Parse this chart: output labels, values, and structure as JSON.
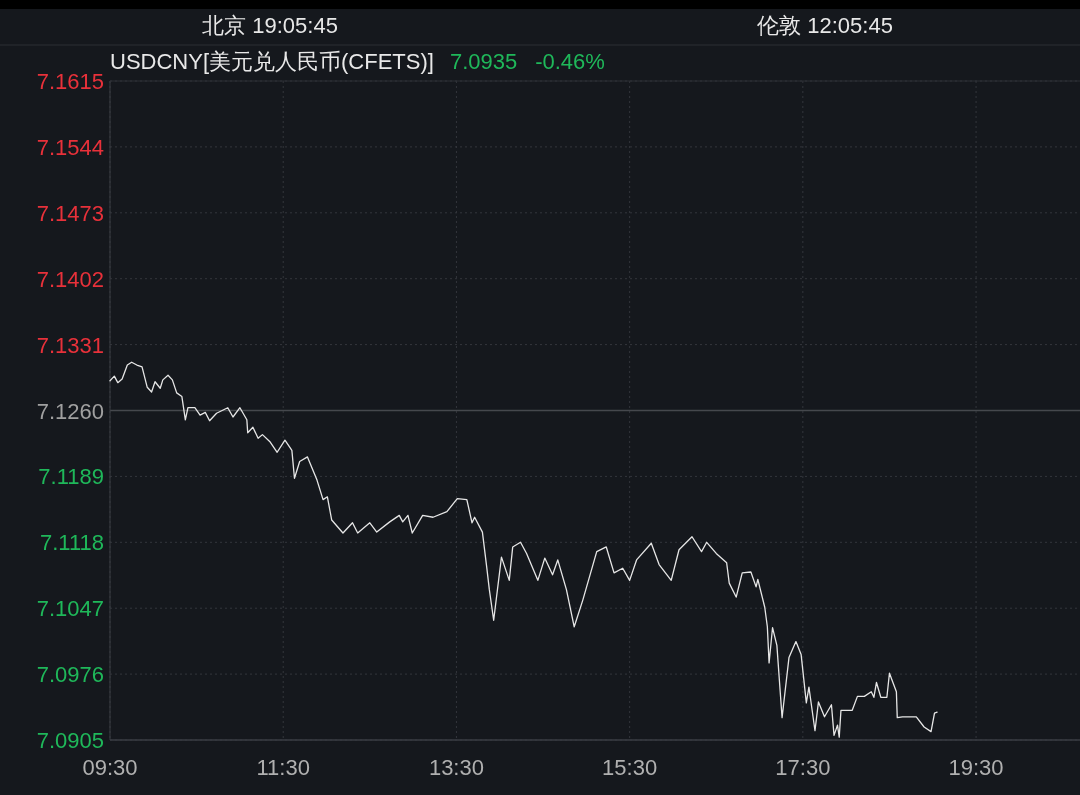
{
  "chart_data": {
    "type": "line",
    "title": "USDCNY[美元兑人民币(CFETS)]",
    "annotations": [
      "北京 19:05:45",
      "伦敦 12:05:45",
      "7.0935",
      "-0.46%"
    ],
    "xlim": [
      9.5,
      20.7
    ],
    "xticks": [
      {
        "value": 9.5,
        "label": "09:30"
      },
      {
        "value": 11.5,
        "label": "11:30"
      },
      {
        "value": 13.5,
        "label": "13:30"
      },
      {
        "value": 15.5,
        "label": "15:30"
      },
      {
        "value": 17.5,
        "label": "17:30"
      },
      {
        "value": 19.5,
        "label": "19:30"
      }
    ],
    "ylim": [
      7.0905,
      7.1615
    ],
    "yticks": [
      7.1615,
      7.1544,
      7.1473,
      7.1402,
      7.1331,
      {
        "value": 7.126,
        "label": "7.1260"
      },
      7.1189,
      7.1118,
      7.1047,
      7.0976,
      7.0905
    ],
    "grid": true,
    "ref_lines": [
      {
        "axis": "y",
        "value": 7.126,
        "color": "#45484d"
      }
    ],
    "series": [
      {
        "color": "#e6e6e6",
        "x": [
          9.5,
          9.55,
          9.59,
          9.64,
          9.7,
          9.75,
          9.81,
          9.87,
          9.93,
          9.98,
          10.02,
          10.08,
          10.11,
          10.17,
          10.22,
          10.27,
          10.33,
          10.37,
          10.4,
          10.48,
          10.54,
          10.6,
          10.65,
          10.73,
          10.86,
          10.92,
          11.0,
          11.08,
          11.09,
          11.15,
          11.21,
          11.26,
          11.35,
          11.43,
          11.52,
          11.6,
          11.63,
          11.69,
          11.78,
          11.89,
          11.96,
          12.01,
          12.06,
          12.19,
          12.3,
          12.36,
          12.5,
          12.58,
          12.73,
          12.84,
          12.88,
          12.94,
          12.99,
          13.11,
          13.23,
          13.39,
          13.51,
          13.62,
          13.68,
          13.71,
          13.8,
          13.85,
          13.88,
          13.93,
          14.02,
          14.11,
          14.15,
          14.24,
          14.31,
          14.44,
          14.52,
          14.61,
          14.67,
          14.77,
          14.86,
          14.96,
          15.12,
          15.23,
          15.32,
          15.42,
          15.5,
          15.58,
          15.75,
          15.84,
          15.98,
          16.07,
          16.22,
          16.33,
          16.39,
          16.5,
          16.62,
          16.65,
          16.73,
          16.8,
          16.9,
          16.96,
          16.98,
          17.06,
          17.09,
          17.11,
          17.15,
          17.2,
          17.26,
          17.34,
          17.42,
          17.48,
          17.54,
          17.57,
          17.64,
          17.68,
          17.75,
          17.83,
          17.86,
          17.9,
          17.92,
          17.94,
          18.07,
          18.13,
          18.21,
          18.29,
          18.32,
          18.35,
          18.4,
          18.47,
          18.5,
          18.58,
          18.59,
          18.65,
          18.81,
          18.9,
          18.98,
          19.02,
          19.05
        ],
        "values": [
          7.1292,
          7.1297,
          7.129,
          7.1294,
          7.1309,
          7.1312,
          7.1309,
          7.1307,
          7.1285,
          7.128,
          7.1291,
          7.1284,
          7.1293,
          7.1298,
          7.1293,
          7.1279,
          7.1275,
          7.125,
          7.1263,
          7.1263,
          7.1255,
          7.1258,
          7.1249,
          7.1257,
          7.1263,
          7.1253,
          7.1263,
          7.125,
          7.1236,
          7.1242,
          7.123,
          7.1234,
          7.1226,
          7.1215,
          7.1228,
          7.1217,
          7.1187,
          7.1205,
          7.121,
          7.1185,
          7.1164,
          7.1167,
          7.1142,
          7.1128,
          7.1139,
          7.1128,
          7.1139,
          7.1129,
          7.114,
          7.1147,
          7.114,
          7.1147,
          7.1128,
          7.1147,
          7.1145,
          7.1151,
          7.1165,
          7.1164,
          7.1139,
          7.1145,
          7.1129,
          7.1091,
          7.1067,
          7.1034,
          7.1102,
          7.1077,
          7.1113,
          7.1118,
          7.1106,
          7.1077,
          7.1101,
          7.1083,
          7.1099,
          7.1067,
          7.1027,
          7.1056,
          7.1108,
          7.1113,
          7.1085,
          7.109,
          7.1077,
          7.1099,
          7.1117,
          7.1094,
          7.1077,
          7.111,
          7.1124,
          7.1108,
          7.1118,
          7.1106,
          7.1096,
          7.1074,
          7.1059,
          7.1085,
          7.1086,
          7.107,
          7.1078,
          7.1048,
          7.1027,
          7.0988,
          7.1026,
          7.1007,
          7.0929,
          7.0994,
          7.1011,
          7.0997,
          7.0945,
          7.0962,
          7.0915,
          7.0946,
          7.093,
          7.0943,
          7.091,
          7.0921,
          7.0908,
          7.0937,
          7.0937,
          7.0952,
          7.0952,
          7.0957,
          7.0951,
          7.0967,
          7.0951,
          7.0951,
          7.0977,
          7.0957,
          7.0929,
          7.093,
          7.093,
          7.0919,
          7.0914,
          7.0934,
          7.0935
        ]
      }
    ]
  }
}
